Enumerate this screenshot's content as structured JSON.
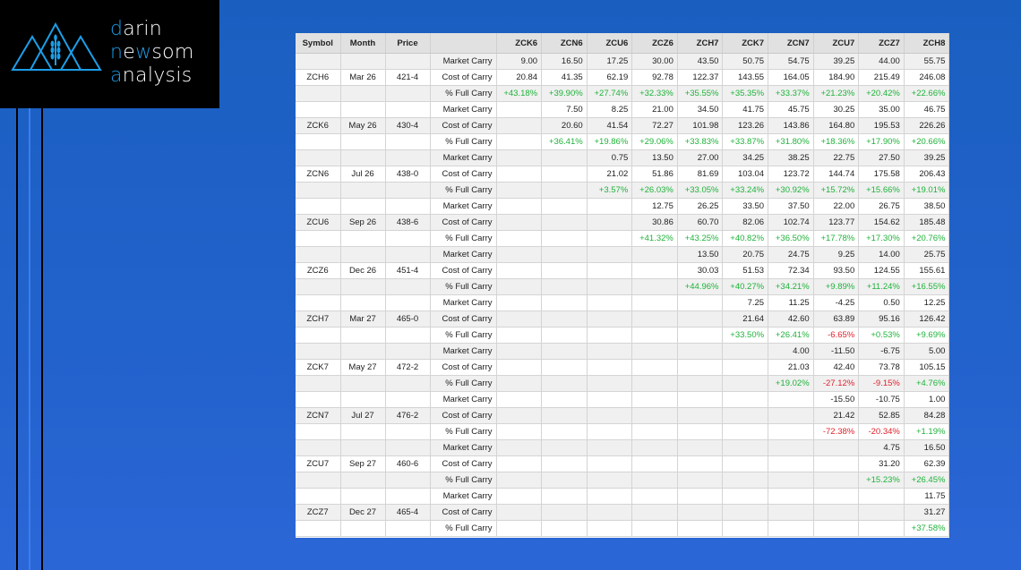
{
  "logo": {
    "line1": "darin",
    "line2": "newsom",
    "line3": "analysis"
  },
  "colors": {
    "positive": "#1fb33a",
    "negative": "#e0212b",
    "logo_accent": "#1c9ee8",
    "background": "#1f62c8"
  },
  "table": {
    "headers": [
      "Symbol",
      "Month",
      "Price",
      "",
      "ZCK6",
      "ZCN6",
      "ZCU6",
      "ZCZ6",
      "ZCH7",
      "ZCK7",
      "ZCN7",
      "ZCU7",
      "ZCZ7",
      "ZCH8"
    ],
    "row_labels": {
      "market": "Market Carry",
      "cost": "Cost of Carry",
      "pct": "% Full Carry"
    },
    "groups": [
      {
        "symbol": "ZCH6",
        "month": "Mar 26",
        "price": "421-4",
        "market": [
          "9.00",
          "16.50",
          "17.25",
          "30.00",
          "43.50",
          "50.75",
          "54.75",
          "39.25",
          "44.00",
          "55.75"
        ],
        "cost": [
          "20.84",
          "41.35",
          "62.19",
          "92.78",
          "122.37",
          "143.55",
          "164.05",
          "184.90",
          "215.49",
          "246.08"
        ],
        "pct": [
          "+43.18%",
          "+39.90%",
          "+27.74%",
          "+32.33%",
          "+35.55%",
          "+35.35%",
          "+33.37%",
          "+21.23%",
          "+20.42%",
          "+22.66%"
        ]
      },
      {
        "symbol": "ZCK6",
        "month": "May 26",
        "price": "430-4",
        "market": [
          "",
          "7.50",
          "8.25",
          "21.00",
          "34.50",
          "41.75",
          "45.75",
          "30.25",
          "35.00",
          "46.75"
        ],
        "cost": [
          "",
          "20.60",
          "41.54",
          "72.27",
          "101.98",
          "123.26",
          "143.86",
          "164.80",
          "195.53",
          "226.26"
        ],
        "pct": [
          "",
          "+36.41%",
          "+19.86%",
          "+29.06%",
          "+33.83%",
          "+33.87%",
          "+31.80%",
          "+18.36%",
          "+17.90%",
          "+20.66%"
        ]
      },
      {
        "symbol": "ZCN6",
        "month": "Jul 26",
        "price": "438-0",
        "market": [
          "",
          "",
          "0.75",
          "13.50",
          "27.00",
          "34.25",
          "38.25",
          "22.75",
          "27.50",
          "39.25"
        ],
        "cost": [
          "",
          "",
          "21.02",
          "51.86",
          "81.69",
          "103.04",
          "123.72",
          "144.74",
          "175.58",
          "206.43"
        ],
        "pct": [
          "",
          "",
          "+3.57%",
          "+26.03%",
          "+33.05%",
          "+33.24%",
          "+30.92%",
          "+15.72%",
          "+15.66%",
          "+19.01%"
        ]
      },
      {
        "symbol": "ZCU6",
        "month": "Sep 26",
        "price": "438-6",
        "market": [
          "",
          "",
          "",
          "12.75",
          "26.25",
          "33.50",
          "37.50",
          "22.00",
          "26.75",
          "38.50"
        ],
        "cost": [
          "",
          "",
          "",
          "30.86",
          "60.70",
          "82.06",
          "102.74",
          "123.77",
          "154.62",
          "185.48"
        ],
        "pct": [
          "",
          "",
          "",
          "+41.32%",
          "+43.25%",
          "+40.82%",
          "+36.50%",
          "+17.78%",
          "+17.30%",
          "+20.76%"
        ]
      },
      {
        "symbol": "ZCZ6",
        "month": "Dec 26",
        "price": "451-4",
        "market": [
          "",
          "",
          "",
          "",
          "13.50",
          "20.75",
          "24.75",
          "9.25",
          "14.00",
          "25.75"
        ],
        "cost": [
          "",
          "",
          "",
          "",
          "30.03",
          "51.53",
          "72.34",
          "93.50",
          "124.55",
          "155.61"
        ],
        "pct": [
          "",
          "",
          "",
          "",
          "+44.96%",
          "+40.27%",
          "+34.21%",
          "+9.89%",
          "+11.24%",
          "+16.55%"
        ]
      },
      {
        "symbol": "ZCH7",
        "month": "Mar 27",
        "price": "465-0",
        "market": [
          "",
          "",
          "",
          "",
          "",
          "7.25",
          "11.25",
          "-4.25",
          "0.50",
          "12.25"
        ],
        "cost": [
          "",
          "",
          "",
          "",
          "",
          "21.64",
          "42.60",
          "63.89",
          "95.16",
          "126.42"
        ],
        "pct": [
          "",
          "",
          "",
          "",
          "",
          "+33.50%",
          "+26.41%",
          "-6.65%",
          "+0.53%",
          "+9.69%"
        ]
      },
      {
        "symbol": "ZCK7",
        "month": "May 27",
        "price": "472-2",
        "market": [
          "",
          "",
          "",
          "",
          "",
          "",
          "4.00",
          "-11.50",
          "-6.75",
          "5.00"
        ],
        "cost": [
          "",
          "",
          "",
          "",
          "",
          "",
          "21.03",
          "42.40",
          "73.78",
          "105.15"
        ],
        "pct": [
          "",
          "",
          "",
          "",
          "",
          "",
          "+19.02%",
          "-27.12%",
          "-9.15%",
          "+4.76%"
        ]
      },
      {
        "symbol": "ZCN7",
        "month": "Jul 27",
        "price": "476-2",
        "market": [
          "",
          "",
          "",
          "",
          "",
          "",
          "",
          "-15.50",
          "-10.75",
          "1.00"
        ],
        "cost": [
          "",
          "",
          "",
          "",
          "",
          "",
          "",
          "21.42",
          "52.85",
          "84.28"
        ],
        "pct": [
          "",
          "",
          "",
          "",
          "",
          "",
          "",
          "-72.38%",
          "-20.34%",
          "+1.19%"
        ]
      },
      {
        "symbol": "ZCU7",
        "month": "Sep 27",
        "price": "460-6",
        "market": [
          "",
          "",
          "",
          "",
          "",
          "",
          "",
          "",
          "4.75",
          "16.50"
        ],
        "cost": [
          "",
          "",
          "",
          "",
          "",
          "",
          "",
          "",
          "31.20",
          "62.39"
        ],
        "pct": [
          "",
          "",
          "",
          "",
          "",
          "",
          "",
          "",
          "+15.23%",
          "+26.45%"
        ]
      },
      {
        "symbol": "ZCZ7",
        "month": "Dec 27",
        "price": "465-4",
        "market": [
          "",
          "",
          "",
          "",
          "",
          "",
          "",
          "",
          "",
          "11.75"
        ],
        "cost": [
          "",
          "",
          "",
          "",
          "",
          "",
          "",
          "",
          "",
          "31.27"
        ],
        "pct": [
          "",
          "",
          "",
          "",
          "",
          "",
          "",
          "",
          "",
          "+37.58%"
        ]
      }
    ]
  }
}
